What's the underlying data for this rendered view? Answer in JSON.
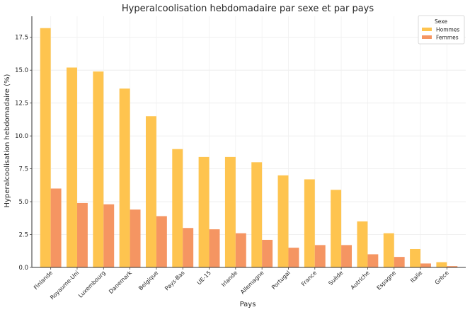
{
  "chart_data": {
    "type": "bar",
    "title": "Hyperalcoolisation hebdomadaire par sexe et par pays",
    "xlabel": "Pays",
    "ylabel": "Hyperalcoolisation hebdomadaire (%)",
    "ylim": [
      0,
      19.1
    ],
    "yticks": [
      "0.0",
      "2.5",
      "5.0",
      "7.5",
      "10.0",
      "12.5",
      "15.0",
      "17.5"
    ],
    "grid": true,
    "legend": {
      "title": "Sexe",
      "position": "top-right"
    },
    "categories": [
      "Finlande",
      "Royaume-Uni",
      "Luxembourg",
      "Danemark",
      "Belgique",
      "Pays-Bas",
      "UE-15",
      "Irlande",
      "Allemagne",
      "Portugal",
      "France",
      "Suède",
      "Autriche",
      "Espagne",
      "Italie",
      "Grèce"
    ],
    "series": [
      {
        "name": "Hommes",
        "color": "#fec44f",
        "values": [
          18.2,
          15.2,
          14.9,
          13.6,
          11.5,
          9.0,
          8.4,
          8.4,
          8.0,
          7.0,
          6.7,
          5.9,
          3.5,
          2.6,
          1.4,
          0.4
        ]
      },
      {
        "name": "Femmes",
        "color": "#f59562",
        "values": [
          6.0,
          4.9,
          4.8,
          4.4,
          3.9,
          3.0,
          2.9,
          2.6,
          2.1,
          1.5,
          1.7,
          1.7,
          1.0,
          0.8,
          0.3,
          0.1
        ]
      }
    ]
  }
}
